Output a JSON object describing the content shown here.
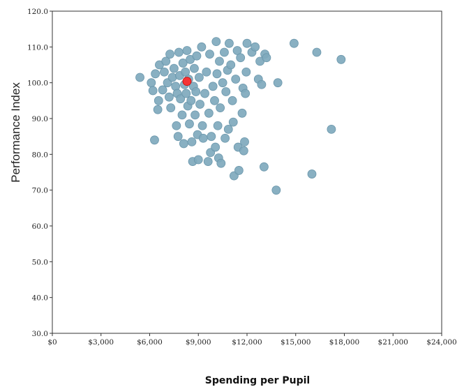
{
  "chart_data": {
    "type": "scatter",
    "title": "",
    "xlabel": "Spending per Pupil",
    "ylabel": "Performance Index",
    "xlim": [
      0,
      24000
    ],
    "ylim": [
      30,
      120
    ],
    "x_ticks": [
      0,
      3000,
      6000,
      9000,
      12000,
      15000,
      18000,
      21000,
      24000
    ],
    "x_tick_labels": [
      "$0",
      "$3,000",
      "$6,000",
      "$9,000",
      "$12,000",
      "$15,000",
      "$18,000",
      "$21,000",
      "$24,000"
    ],
    "y_ticks": [
      30,
      40,
      50,
      60,
      70,
      80,
      90,
      100,
      110,
      120
    ],
    "y_tick_labels": [
      "30.0",
      "40.0",
      "50.0",
      "60.0",
      "70.0",
      "80.0",
      "90.0",
      "100.0",
      "110.0",
      "120.0"
    ],
    "grid": false,
    "legend": "none",
    "series": [
      {
        "color": "#7fa9bd",
        "points": [
          [
            5400,
            101.5
          ],
          [
            6100,
            100.0
          ],
          [
            6200,
            97.8
          ],
          [
            6300,
            84.0
          ],
          [
            6350,
            102.5
          ],
          [
            6500,
            92.5
          ],
          [
            6550,
            95.0
          ],
          [
            6600,
            105.0
          ],
          [
            6800,
            98.0
          ],
          [
            6900,
            103.0
          ],
          [
            7000,
            106.0
          ],
          [
            7100,
            100.0
          ],
          [
            7200,
            96.0
          ],
          [
            7250,
            108.0
          ],
          [
            7300,
            93.0
          ],
          [
            7400,
            101.5
          ],
          [
            7500,
            104.0
          ],
          [
            7600,
            99.0
          ],
          [
            7650,
            88.0
          ],
          [
            7700,
            97.0
          ],
          [
            7750,
            85.0
          ],
          [
            7800,
            108.5
          ],
          [
            7850,
            102.0
          ],
          [
            7900,
            95.5
          ],
          [
            8000,
            91.0
          ],
          [
            8050,
            105.5
          ],
          [
            8100,
            83.0
          ],
          [
            8150,
            99.5
          ],
          [
            8200,
            103.0
          ],
          [
            8250,
            97.0
          ],
          [
            8300,
            109.0
          ],
          [
            8350,
            93.5
          ],
          [
            8400,
            101.0
          ],
          [
            8450,
            88.5
          ],
          [
            8500,
            106.5
          ],
          [
            8550,
            95.0
          ],
          [
            8600,
            83.5
          ],
          [
            8650,
            78.0
          ],
          [
            8700,
            99.0
          ],
          [
            8750,
            104.0
          ],
          [
            8800,
            91.0
          ],
          [
            8850,
            97.5
          ],
          [
            8900,
            107.5
          ],
          [
            8950,
            85.5
          ],
          [
            9000,
            78.5
          ],
          [
            9050,
            101.5
          ],
          [
            9100,
            94.0
          ],
          [
            9200,
            110.0
          ],
          [
            9250,
            88.0
          ],
          [
            9300,
            84.5
          ],
          [
            9400,
            97.0
          ],
          [
            9500,
            103.0
          ],
          [
            9600,
            78.0
          ],
          [
            9650,
            91.5
          ],
          [
            9700,
            108.0
          ],
          [
            9750,
            80.5
          ],
          [
            9800,
            85.0
          ],
          [
            9900,
            99.0
          ],
          [
            10000,
            95.0
          ],
          [
            10050,
            82.0
          ],
          [
            10100,
            111.5
          ],
          [
            10150,
            102.5
          ],
          [
            10200,
            88.0
          ],
          [
            10250,
            79.0
          ],
          [
            10300,
            106.0
          ],
          [
            10350,
            93.0
          ],
          [
            10400,
            77.5
          ],
          [
            10500,
            100.0
          ],
          [
            10600,
            108.5
          ],
          [
            10650,
            84.5
          ],
          [
            10700,
            97.5
          ],
          [
            10800,
            103.5
          ],
          [
            10850,
            87.0
          ],
          [
            10900,
            111.0
          ],
          [
            11000,
            105.0
          ],
          [
            11100,
            95.0
          ],
          [
            11150,
            89.0
          ],
          [
            11200,
            74.0
          ],
          [
            11300,
            101.0
          ],
          [
            11400,
            109.0
          ],
          [
            11450,
            82.0
          ],
          [
            11500,
            75.5
          ],
          [
            11600,
            107.0
          ],
          [
            11700,
            91.5
          ],
          [
            11750,
            98.5
          ],
          [
            11800,
            81.0
          ],
          [
            11850,
            83.5
          ],
          [
            11900,
            97.0
          ],
          [
            11950,
            103.0
          ],
          [
            12000,
            111.0
          ],
          [
            12300,
            108.5
          ],
          [
            12500,
            110.0
          ],
          [
            12700,
            101.0
          ],
          [
            12800,
            106.0
          ],
          [
            12900,
            99.5
          ],
          [
            13050,
            76.5
          ],
          [
            13100,
            108.0
          ],
          [
            13200,
            107.0
          ],
          [
            13800,
            70.0
          ],
          [
            13900,
            100.0
          ],
          [
            14900,
            111.0
          ],
          [
            16000,
            74.5
          ],
          [
            16300,
            108.5
          ],
          [
            17200,
            87.0
          ],
          [
            17800,
            106.5
          ]
        ]
      },
      {
        "color": "#ff2a2a",
        "points": [
          [
            8300,
            100.4
          ]
        ]
      }
    ]
  }
}
